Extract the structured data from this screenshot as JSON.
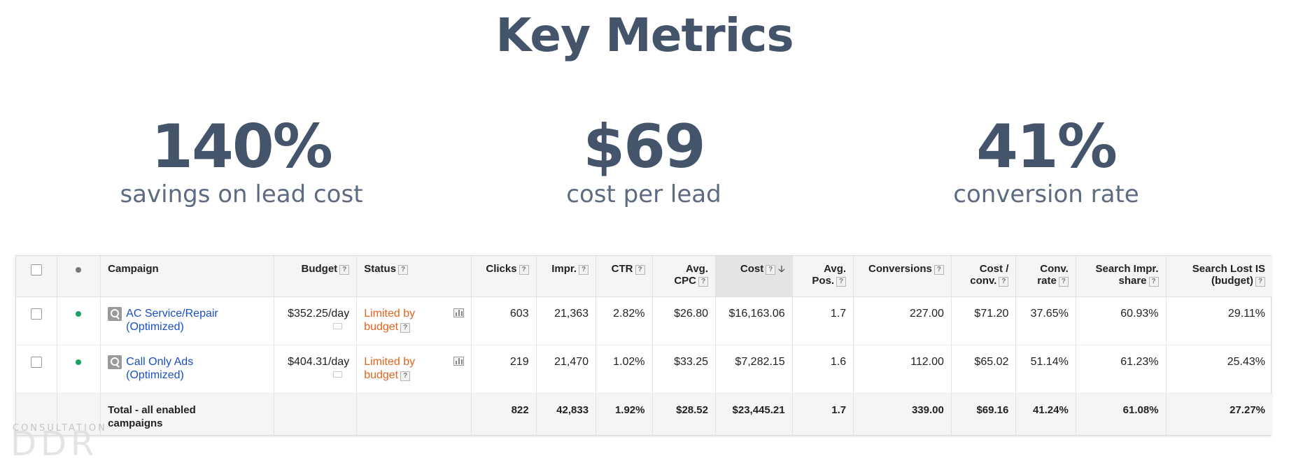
{
  "title": "Key Metrics",
  "metrics": [
    {
      "value": "140%",
      "label": "savings on lead cost"
    },
    {
      "value": "$69",
      "label": "cost per lead"
    },
    {
      "value": "41%",
      "label": "conversion rate"
    }
  ],
  "table": {
    "headers": {
      "campaign": "Campaign",
      "budget": "Budget",
      "status": "Status",
      "clicks": "Clicks",
      "impr": "Impr.",
      "ctr": "CTR",
      "avg_cpc_1": "Avg.",
      "avg_cpc_2": "CPC",
      "cost": "Cost",
      "avg_pos_1": "Avg.",
      "avg_pos_2": "Pos.",
      "conversions": "Conversions",
      "cost_conv_1": "Cost /",
      "cost_conv_2": "conv.",
      "conv_rate_1": "Conv.",
      "conv_rate_2": "rate",
      "sis_1": "Search Impr.",
      "sis_2": "share",
      "slis_1": "Search Lost IS",
      "slis_2": "(budget)",
      "help": "?"
    },
    "rows": [
      {
        "campaign_line1": "AC Service/Repair",
        "campaign_line2": "(Optimized)",
        "budget": "$352.25/day",
        "status_line1": "Limited by",
        "status_line2": "budget",
        "clicks": "603",
        "impr": "21,363",
        "ctr": "2.82%",
        "avg_cpc": "$26.80",
        "cost": "$16,163.06",
        "avg_pos": "1.7",
        "conversions": "227.00",
        "cost_conv": "$71.20",
        "conv_rate": "37.65%",
        "search_impr_share": "60.93%",
        "search_lost_is": "29.11%"
      },
      {
        "campaign_line1": "Call Only Ads",
        "campaign_line2": "(Optimized)",
        "budget": "$404.31/day",
        "status_line1": "Limited by",
        "status_line2": "budget",
        "clicks": "219",
        "impr": "21,470",
        "ctr": "1.02%",
        "avg_cpc": "$33.25",
        "cost": "$7,282.15",
        "avg_pos": "1.6",
        "conversions": "112.00",
        "cost_conv": "$65.02",
        "conv_rate": "51.14%",
        "search_impr_share": "61.23%",
        "search_lost_is": "25.43%"
      }
    ],
    "total": {
      "label_line1": "Total - all enabled",
      "label_line2": "campaigns",
      "clicks": "822",
      "impr": "42,833",
      "ctr": "1.92%",
      "avg_cpc": "$28.52",
      "cost": "$23,445.21",
      "avg_pos": "1.7",
      "conversions": "339.00",
      "cost_conv": "$69.16",
      "conv_rate": "41.24%",
      "search_impr_share": "61.08%",
      "search_lost_is": "27.27%"
    }
  },
  "watermark": {
    "sub": "CONSULTATION",
    "main": "DDR"
  },
  "colors": {
    "heading": "#44546a",
    "link": "#1a4fc4",
    "status_warning": "#e2641d",
    "enabled": "#1aa260"
  }
}
